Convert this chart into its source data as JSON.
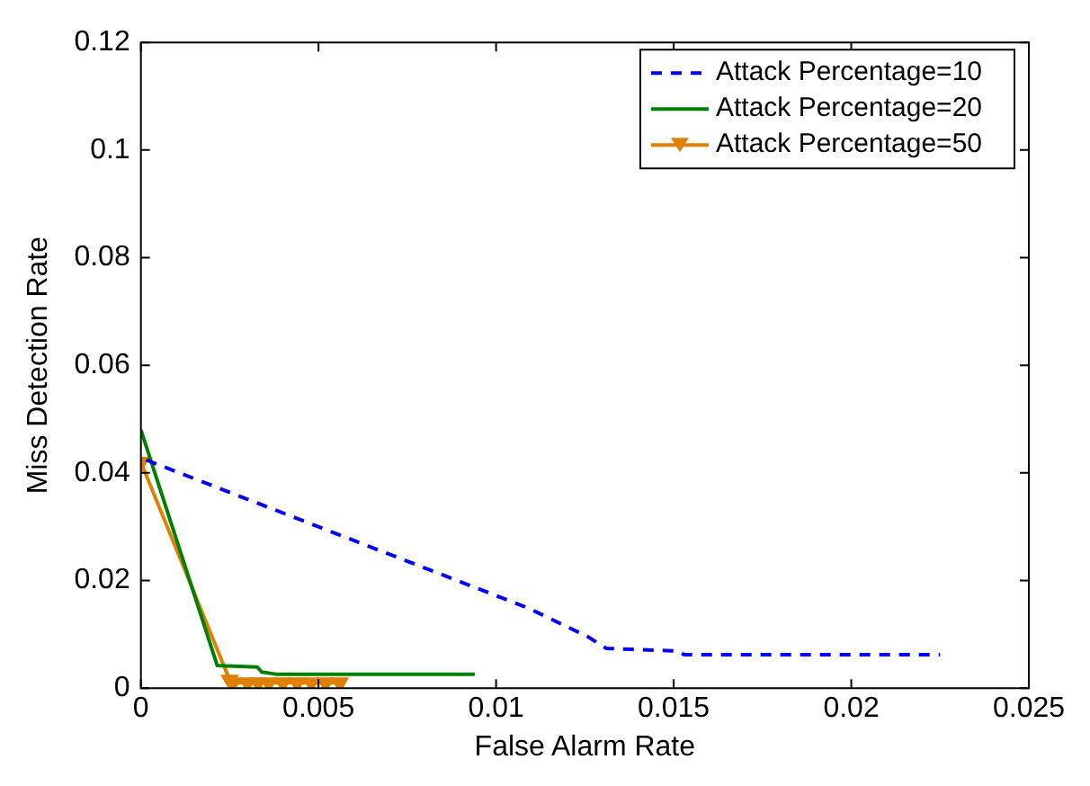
{
  "chart_data": {
    "type": "line",
    "xlabel": "False Alarm Rate",
    "ylabel": "Miss Detection Rate",
    "xlim": [
      0,
      0.025
    ],
    "xticks": [
      0,
      0.005,
      0.01,
      0.015,
      0.02,
      0.025
    ],
    "ylim": [
      0,
      0.12
    ],
    "yticks": [
      0,
      0.02,
      0.04,
      0.06,
      0.08,
      0.1,
      0.12
    ],
    "grid": false,
    "legend": "top right",
    "series": [
      {
        "name": "Attack Percentage=10",
        "color": "#0000ff",
        "line_style": "dashed",
        "marker": "none",
        "x": [
          0.00015,
          0.0091,
          0.0109,
          0.0126,
          0.0131,
          0.0151,
          0.0153,
          0.0225
        ],
        "values": [
          0.0424,
          0.0195,
          0.0149,
          0.0095,
          0.0074,
          0.0069,
          0.0062,
          0.0062
        ]
      },
      {
        "name": "Attack Percentage=20",
        "color": "#008000",
        "line_style": "solid",
        "marker": "none",
        "x": [
          0,
          0.00215,
          0.00328,
          0.0034,
          0.0038,
          0.0094
        ],
        "values": [
          0.048,
          0.0042,
          0.0039,
          0.003,
          0.0026,
          0.0026
        ]
      },
      {
        "name": "Attack Percentage=50",
        "color": "#e08000",
        "line_style": "solid",
        "marker": "triangle",
        "x": [
          0,
          0.0025,
          0.0026,
          0.003,
          0.0033,
          0.0036,
          0.004,
          0.0044,
          0.0048,
          0.0052,
          0.0056
        ],
        "values": [
          0.042,
          0.0015,
          0.001,
          0.001,
          0.001,
          0.001,
          0.001,
          0.001,
          0.001,
          0.001,
          0.001
        ]
      }
    ]
  }
}
